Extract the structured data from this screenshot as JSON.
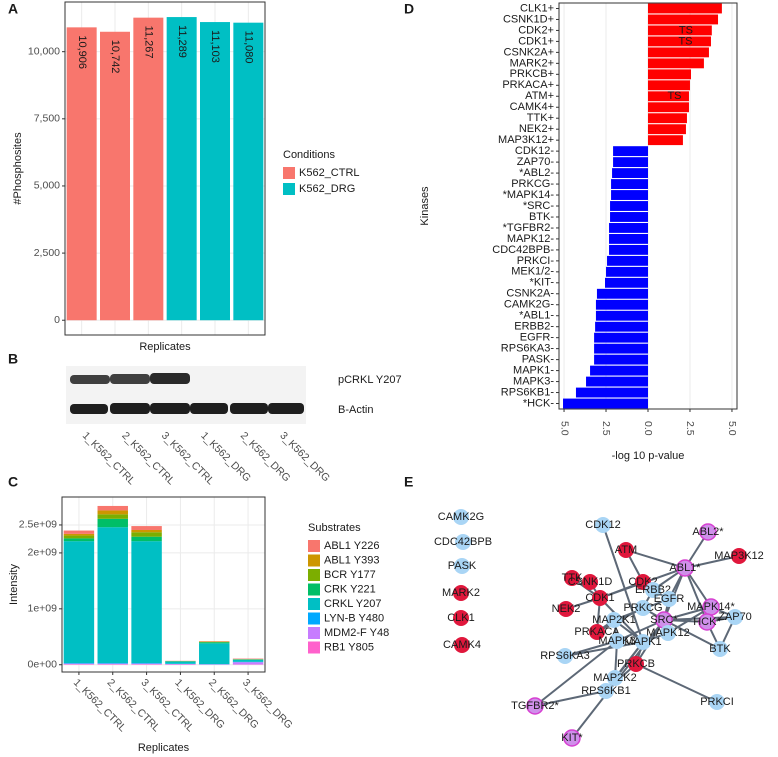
{
  "panel_labels": [
    "A",
    "B",
    "C",
    "D",
    "E"
  ],
  "chart_data": [
    {
      "type": "bar",
      "y_label": "#Phosphosites",
      "x_label": "Replicates",
      "legend_title": "Conditions",
      "legend": "right",
      "grid": true,
      "categories": [
        null,
        null,
        null,
        null,
        null,
        null
      ],
      "series": [
        {
          "name": "K562_CTRL",
          "color": "#F8766D",
          "values": [
            10906,
            10742,
            11267,
            null,
            null,
            null
          ],
          "value_labels": [
            "10,906",
            "10,742",
            "11,267",
            null,
            null,
            null
          ]
        },
        {
          "name": "K562_DRG",
          "color": "#00BFC4",
          "values": [
            null,
            null,
            null,
            11289,
            11103,
            11080
          ],
          "value_labels": [
            null,
            null,
            null,
            "11,289",
            "11,103",
            "11,080"
          ]
        }
      ],
      "ylim": [
        -550,
        11850
      ],
      "yticks": [
        0,
        {
          "value": 2500,
          "label": "2,500"
        },
        {
          "value": 5000,
          "label": "5,000"
        },
        {
          "value": 7500,
          "label": "7,500"
        },
        {
          "value": 10000,
          "label": "10,000"
        }
      ]
    },
    {
      "type": "bar",
      "stacked": true,
      "y_label": "Intensity",
      "x_label": "Replicates",
      "legend_title": "Substrates",
      "legend": "right",
      "grid": true,
      "categories": [
        "1_K562_CTRL",
        "2_K562_CTRL",
        "3_K562_CTRL",
        "1_K562_DRG",
        "2_K562_DRG",
        "3_K562_DRG"
      ],
      "series": [
        {
          "name": "ABL1 Y226",
          "color": "#F8766D",
          "values": [
            60000000,
            80000000,
            70000000,
            3000000,
            5000000,
            8000000
          ]
        },
        {
          "name": "ABL1 Y393",
          "color": "#CD9600",
          "values": [
            30000000,
            70000000,
            40000000,
            2000000,
            8000000,
            3000000
          ]
        },
        {
          "name": "BCR Y177",
          "color": "#7CAE00",
          "values": [
            50000000,
            80000000,
            80000000,
            3000000,
            4000000,
            3000000
          ]
        },
        {
          "name": "CRK Y221",
          "color": "#00BE67",
          "values": [
            50000000,
            150000000,
            80000000,
            4000000,
            20000000,
            5000000
          ]
        },
        {
          "name": "CRKL Y207",
          "color": "#00BFC4",
          "values": [
            2180000000,
            2430000000,
            2180000000,
            40000000,
            370000000,
            40000000
          ]
        },
        {
          "name": "LYN-B Y480",
          "color": "#00A9FF",
          "values": [
            10000000,
            10000000,
            10000000,
            5000000,
            5000000,
            5000000
          ]
        },
        {
          "name": "MDM2-F Y48",
          "color": "#C77CFF",
          "values": [
            10000000,
            10000000,
            10000000,
            8000000,
            5000000,
            40000000
          ]
        },
        {
          "name": "RB1 Y805",
          "color": "#FF61CC",
          "values": [
            10000000,
            10000000,
            10000000,
            5000000,
            3000000,
            6000000
          ]
        }
      ],
      "ylim": [
        -130000000,
        3000000000
      ],
      "yticks": [
        {
          "value": 0,
          "label": "0e+00"
        },
        {
          "value": 1000000000,
          "label": "1e+09"
        },
        {
          "value": 2000000000,
          "label": "2e+09"
        },
        {
          "value": 2500000000,
          "label": "2.5e+09"
        }
      ]
    },
    {
      "type": "barh",
      "y_label": "Kinases",
      "x_label": "-log 10 p-value",
      "grid": true,
      "positive_color": "#FF0000",
      "negative_color": "#0000FF",
      "categories": [
        "CLK1+",
        "CSNK1D+",
        "CDK2+",
        "CDK1+",
        "CSNK2A+",
        "MARK2+",
        "PRKCB+",
        "PRKACA+",
        "ATM+",
        "CAMK4+",
        "TTK+",
        "NEK2+",
        "MAP3K12+",
        "CDK12-",
        "ZAP70-",
        "*ABL2-",
        "PRKCG-",
        "*MAPK14-",
        "*SRC-",
        "BTK-",
        "*TGFBR2-",
        "MAPK12-",
        "CDC42BPB-",
        "PRKCI-",
        "MEK1/2-",
        "*KIT-",
        "CSNK2A-",
        "CAMK2G-",
        "*ABL1-",
        "ERBB2-",
        "EGFR-",
        "RPS6KA3-",
        "PASK-",
        "MAPK1-",
        "MAPK3-",
        "RPS6KB1-",
        "*HCK-"
      ],
      "values": [
        4.4,
        4.17,
        3.8,
        3.75,
        3.63,
        3.33,
        2.56,
        2.5,
        2.44,
        2.44,
        2.32,
        2.26,
        2.08,
        -2.08,
        -2.08,
        -2.14,
        -2.2,
        -2.2,
        -2.26,
        -2.26,
        -2.32,
        -2.32,
        -2.32,
        -2.44,
        -2.5,
        -2.56,
        -3.04,
        -3.1,
        -3.1,
        -3.15,
        -3.21,
        -3.21,
        -3.21,
        -3.45,
        -3.69,
        -4.29,
        -5.06
      ],
      "annotations": [
        {
          "text": "TS",
          "category": "CDK2+"
        },
        {
          "text": "TS",
          "category": "CDK1+"
        },
        {
          "text": "TS",
          "category": "ATM+"
        }
      ],
      "xlim": [
        -5.3,
        5.3
      ],
      "xticks": [
        {
          "value": -5,
          "label": "5.0"
        },
        {
          "value": -2.5,
          "label": "2.5"
        },
        {
          "value": 0,
          "label": "0.0"
        },
        {
          "value": 2.5,
          "label": "2.5"
        },
        {
          "value": 5,
          "label": "5.0"
        }
      ]
    }
  ],
  "blot": {
    "bands": [
      "pCRKL Y207",
      "B-Actin"
    ],
    "lanes": [
      "1_K562_CTRL",
      "2_K562_CTRL",
      "3_K562_CTRL",
      "1_K562_DRG",
      "2_K562_DRG",
      "3_K562_DRG"
    ]
  },
  "network": {
    "nodes": [
      {
        "label": "CAMK2G",
        "color": "#A9D5F5"
      },
      {
        "label": "CDC42BPB",
        "color": "#A9D5F5"
      },
      {
        "label": "PASK",
        "color": "#A9D5F5"
      },
      {
        "label": "MARK2",
        "color": "#E0173C"
      },
      {
        "label": "CLK1",
        "color": "#E0173C"
      },
      {
        "label": "CAMK4",
        "color": "#E0173C"
      },
      {
        "label": "CDK12",
        "color": "#A9D5F5"
      },
      {
        "label": "ABL2*",
        "color": "#CF8FEA"
      },
      {
        "label": "ATM",
        "color": "#E0173C"
      },
      {
        "label": "MAP3K12",
        "color": "#E0173C"
      },
      {
        "label": "ABL1*",
        "color": "#CF8FEA"
      },
      {
        "label": "TTK",
        "color": "#E0173C"
      },
      {
        "label": "CSNK1D",
        "color": "#E0173C"
      },
      {
        "label": "CDK2",
        "color": "#E0173C"
      },
      {
        "label": "ERBB2",
        "color": "#A9D5F5"
      },
      {
        "label": "CDK1",
        "color": "#E0173C"
      },
      {
        "label": "EGFR",
        "color": "#A9D5F5"
      },
      {
        "label": "MAPK14*",
        "color": "#CF8FEA"
      },
      {
        "label": "PRKCG",
        "color": "#A9D5F5"
      },
      {
        "label": "NEK2",
        "color": "#E0173C"
      },
      {
        "label": "SRC*",
        "color": "#CF8FEA"
      },
      {
        "label": "MAP2K1",
        "color": "#A9D5F5"
      },
      {
        "label": "HCK*",
        "color": "#CF8FEA"
      },
      {
        "label": "ZAP70",
        "color": "#A9D5F5"
      },
      {
        "label": "PRKACA",
        "color": "#E0173C"
      },
      {
        "label": "MAPK12",
        "color": "#A9D5F5"
      },
      {
        "label": "MAPK3",
        "color": "#A9D5F5"
      },
      {
        "label": "MAPK1",
        "color": "#A9D5F5"
      },
      {
        "label": "BTK",
        "color": "#A9D5F5"
      },
      {
        "label": "RPS6KA3",
        "color": "#A9D5F5"
      },
      {
        "label": "PRKCB",
        "color": "#E0173C"
      },
      {
        "label": "MAP2K2",
        "color": "#A9D5F5"
      },
      {
        "label": "RPS6KB1",
        "color": "#A9D5F5"
      },
      {
        "label": "PRKCI",
        "color": "#A9D5F5"
      },
      {
        "label": "TGFBR2*",
        "color": "#CF8FEA"
      },
      {
        "label": "KIT*",
        "color": "#CF8FEA"
      }
    ]
  }
}
